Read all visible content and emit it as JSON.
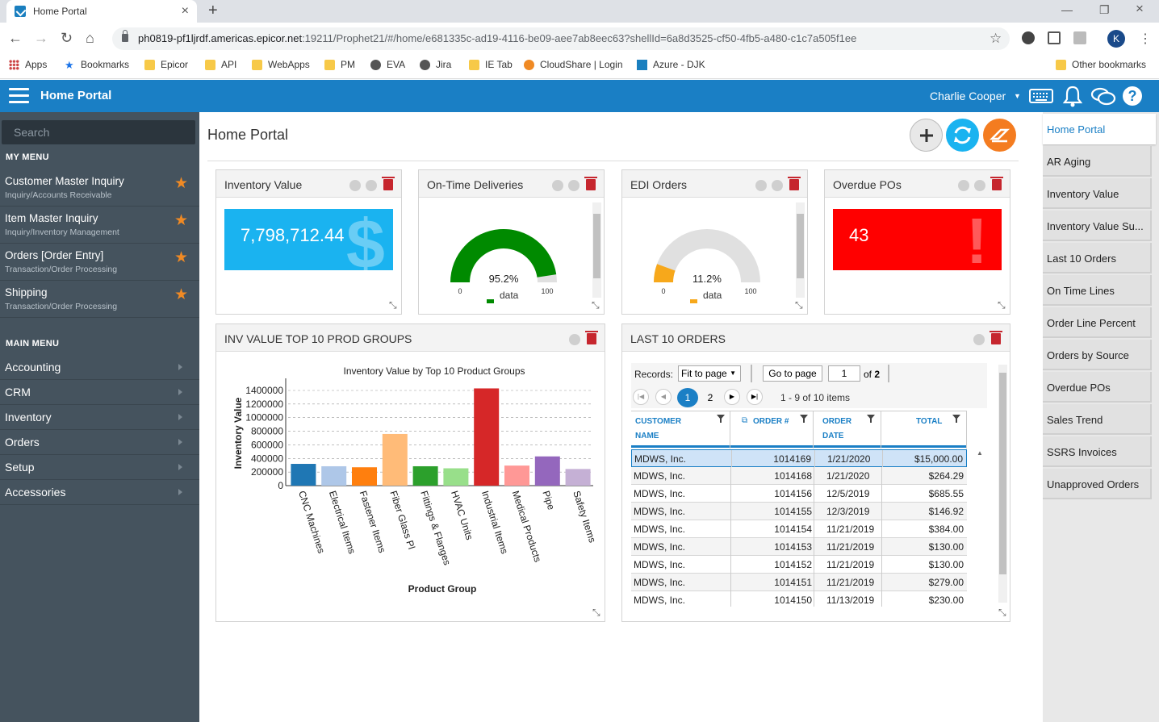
{
  "browser": {
    "tab_title": "Home Portal",
    "url_host": "ph0819-pf1ljrdf.americas.epicor.net",
    "url_rest": ":19211/Prophet21/#/home/e681335c-ad19-4116-be09-aee7ab8eec63?shellId=6a8d3525-cf50-4fb5-a480-c1c7a505f1ee",
    "profile_initial": "K",
    "bookmarks": [
      "Apps",
      "Bookmarks",
      "Epicor",
      "API",
      "WebApps",
      "PM",
      "EVA",
      "Jira",
      "IE Tab",
      "CloudShare | Login",
      "Azure - DJK"
    ],
    "other_bookmarks": "Other bookmarks"
  },
  "header": {
    "title": "Home Portal",
    "user": "Charlie Cooper"
  },
  "sidebar": {
    "search_placeholder": "Search",
    "my_menu_label": "MY MENU",
    "my_menu": [
      {
        "name": "Customer Master Inquiry",
        "sub": "Inquiry/Accounts Receivable"
      },
      {
        "name": "Item Master Inquiry",
        "sub": "Inquiry/Inventory Management"
      },
      {
        "name": "Orders [Order Entry]",
        "sub": "Transaction/Order Processing"
      },
      {
        "name": "Shipping",
        "sub": "Transaction/Order Processing"
      }
    ],
    "main_menu_label": "MAIN MENU",
    "main_menu": [
      "Accounting",
      "CRM",
      "Inventory",
      "Orders",
      "Setup",
      "Accessories"
    ]
  },
  "main": {
    "page_title": "Home Portal",
    "widgets": {
      "inventory_value": {
        "title": "Inventory Value",
        "value": "7,798,712.44",
        "color": "#1ab3f0"
      },
      "on_time": {
        "title": "On-Time Deliveries",
        "percent": 95.2,
        "label": "95.2%",
        "min": "0",
        "max": "100",
        "legend": "data",
        "color": "#008a00"
      },
      "edi": {
        "title": "EDI Orders",
        "percent": 11.2,
        "label": "11.2%",
        "min": "0",
        "max": "100",
        "legend": "data",
        "color": "#f7a81b"
      },
      "overdue": {
        "title": "Overdue POs",
        "value": "43",
        "color": "#ff0000"
      },
      "inv_top10": {
        "title": "INV VALUE TOP 10 PROD GROUPS"
      },
      "last10": {
        "title": "LAST 10 ORDERS"
      }
    }
  },
  "chart_data": {
    "type": "bar",
    "title": "Inventory Value by Top 10 Product Groups",
    "xlabel": "Product Group",
    "ylabel": "Inventory Value",
    "ylim": [
      0,
      1400000
    ],
    "yticks": [
      "0",
      "200000",
      "400000",
      "600000",
      "800000",
      "1000000",
      "1200000",
      "1400000"
    ],
    "grid": true,
    "categories": [
      "CNC Machines",
      "Electrical Items",
      "Fastener Items",
      "Fiber Glass Pl",
      "Fittings & Flanges",
      "HVAC Units",
      "Industrial Items",
      "Medical Products",
      "Pipe",
      "Safety Items"
    ],
    "values": [
      320000,
      285000,
      270000,
      760000,
      285000,
      255000,
      1430000,
      295000,
      430000,
      245000
    ],
    "colors": [
      "#1f77b4",
      "#aec7e8",
      "#ff7f0e",
      "#ffbb78",
      "#2ca02c",
      "#98df8a",
      "#d62728",
      "#ff9896",
      "#9467bd",
      "#c5b0d5"
    ]
  },
  "orders": {
    "records_label": "Records:",
    "fit_option": "Fit to page",
    "goto_label": "Go to page",
    "page_value": "1",
    "of_label": "of",
    "total_pages": "2",
    "pages": [
      "1",
      "2"
    ],
    "items_info": "1 - 9 of 10 items",
    "columns": [
      "CUSTOMER NAME",
      "ORDER #",
      "ORDER DATE",
      "TOTAL"
    ],
    "rows": [
      [
        "MDWS, Inc.",
        "1014169",
        "1/21/2020",
        "$15,000.00"
      ],
      [
        "MDWS, Inc.",
        "1014168",
        "1/21/2020",
        "$264.29"
      ],
      [
        "MDWS, Inc.",
        "1014156",
        "12/5/2019",
        "$685.55"
      ],
      [
        "MDWS, Inc.",
        "1014155",
        "12/3/2019",
        "$146.92"
      ],
      [
        "MDWS, Inc.",
        "1014154",
        "11/21/2019",
        "$384.00"
      ],
      [
        "MDWS, Inc.",
        "1014153",
        "11/21/2019",
        "$130.00"
      ],
      [
        "MDWS, Inc.",
        "1014152",
        "11/21/2019",
        "$130.00"
      ],
      [
        "MDWS, Inc.",
        "1014151",
        "11/21/2019",
        "$279.00"
      ],
      [
        "MDWS, Inc.",
        "1014150",
        "11/13/2019",
        "$230.00"
      ]
    ]
  },
  "right_panel": {
    "items": [
      "Home Portal",
      "AR Aging",
      "Inventory Value",
      "Inventory Value Su...",
      "Last 10 Orders",
      "On Time Lines",
      "Order Line Percent",
      "Orders by Source",
      "Overdue POs",
      "Sales Trend",
      "SSRS Invoices",
      "Unapproved Orders"
    ]
  }
}
